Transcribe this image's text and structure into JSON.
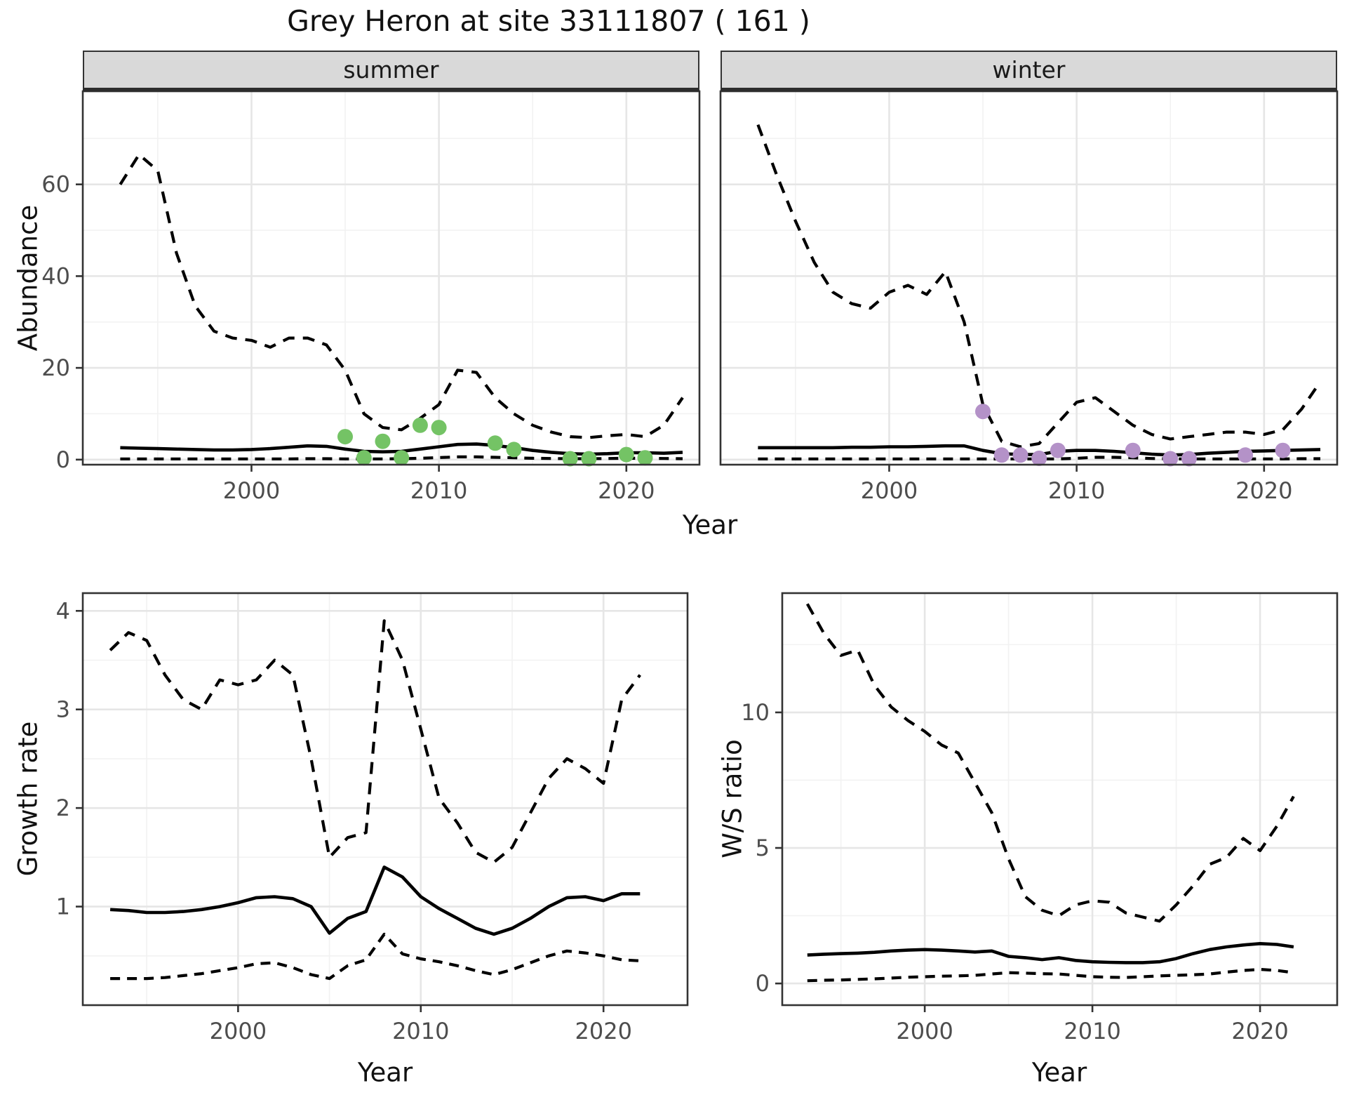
{
  "title": "Grey Heron at site 33111807 ( 161 )",
  "accent_colors": {
    "summer_points": "#74c365",
    "winter_points": "#b492c8",
    "lines": "#000000",
    "strip_bg": "#d9d9d9",
    "grid_major": "#e6e6e6",
    "grid_minor": "#f2f2f2",
    "tick_text": "#4d4d4d"
  },
  "chart_data": [
    {
      "id": "summer",
      "type": "line",
      "facet": "summer",
      "xlabel": "Year",
      "ylabel": "Abundance",
      "xticks": [
        2000,
        2010,
        2020
      ],
      "yticks": [
        0,
        20,
        40,
        60
      ],
      "x_minor": [
        1995,
        2005,
        2015
      ],
      "y_minor": [
        10,
        30,
        50,
        70
      ],
      "xlim": [
        1991,
        2023.9
      ],
      "ylim": [
        -1.1,
        80.3
      ],
      "show_yticks": true,
      "legend": "none",
      "grid": true,
      "years": [
        1993,
        1994,
        1995,
        1996,
        1997,
        1998,
        1999,
        2000,
        2001,
        2002,
        2003,
        2004,
        2005,
        2006,
        2007,
        2008,
        2009,
        2010,
        2011,
        2012,
        2013,
        2014,
        2015,
        2016,
        2017,
        2018,
        2019,
        2020,
        2021,
        2022,
        2023
      ],
      "series": [
        {
          "name": "upper_95ci",
          "style": "dashed",
          "values": [
            60,
            66.5,
            63,
            45,
            33.5,
            28,
            26.5,
            26,
            24.5,
            26.5,
            26.5,
            25,
            19.5,
            10,
            7,
            6.5,
            9,
            12,
            19.5,
            19,
            13.5,
            10,
            7.5,
            6,
            5,
            4.8,
            5.2,
            5.5,
            5,
            7.5,
            13.5
          ]
        },
        {
          "name": "median",
          "style": "solid",
          "values": [
            2.6,
            2.5,
            2.4,
            2.3,
            2.2,
            2.1,
            2.1,
            2.2,
            2.4,
            2.7,
            3.0,
            2.9,
            2.3,
            1.8,
            1.7,
            1.8,
            2.3,
            2.8,
            3.3,
            3.4,
            3.1,
            2.6,
            2.0,
            1.6,
            1.3,
            1.2,
            1.3,
            1.5,
            1.5,
            1.4,
            1.6
          ]
        },
        {
          "name": "lower_95ci",
          "style": "dashed",
          "values": [
            0.15,
            0.15,
            0.15,
            0.15,
            0.15,
            0.15,
            0.15,
            0.15,
            0.15,
            0.15,
            0.2,
            0.2,
            0.15,
            0.15,
            0.15,
            0.2,
            0.3,
            0.45,
            0.6,
            0.6,
            0.5,
            0.4,
            0.3,
            0.25,
            0.2,
            0.2,
            0.25,
            0.3,
            0.3,
            0.25,
            0.2
          ]
        }
      ],
      "observed_points": {
        "color": "#74c365",
        "data": [
          [
            2005,
            5
          ],
          [
            2006,
            0.4
          ],
          [
            2007,
            4
          ],
          [
            2008,
            0.4
          ],
          [
            2009,
            7.5
          ],
          [
            2010,
            7
          ],
          [
            2013,
            3.6
          ],
          [
            2014,
            2.2
          ],
          [
            2017,
            0.2
          ],
          [
            2018,
            0.2
          ],
          [
            2020,
            1.1
          ],
          [
            2021,
            0.4
          ]
        ]
      }
    },
    {
      "id": "winter",
      "type": "line",
      "facet": "winter",
      "xlabel": "Year",
      "ylabel": "",
      "xticks": [
        2000,
        2010,
        2020
      ],
      "yticks": [
        0,
        20,
        40,
        60
      ],
      "x_minor": [
        1995,
        2005,
        2015
      ],
      "y_minor": [
        10,
        30,
        50,
        70
      ],
      "xlim": [
        1991,
        2023.9
      ],
      "ylim": [
        -1.1,
        80.3
      ],
      "show_yticks": false,
      "legend": "none",
      "grid": true,
      "years": [
        1993,
        1994,
        1995,
        1996,
        1997,
        1998,
        1999,
        2000,
        2001,
        2002,
        2003,
        2004,
        2005,
        2006,
        2007,
        2008,
        2009,
        2010,
        2011,
        2012,
        2013,
        2014,
        2015,
        2016,
        2017,
        2018,
        2019,
        2020,
        2021,
        2022,
        2023
      ],
      "series": [
        {
          "name": "upper_95ci",
          "style": "dashed",
          "values": [
            73,
            62,
            52,
            43,
            36.5,
            34,
            33,
            36.5,
            38,
            36,
            41,
            30,
            12,
            4,
            2.8,
            3.5,
            8,
            12.5,
            13.5,
            10.5,
            7.5,
            5.5,
            4.5,
            5,
            5.5,
            6,
            6,
            5.5,
            6.5,
            11,
            17
          ]
        },
        {
          "name": "median",
          "style": "solid",
          "values": [
            2.6,
            2.6,
            2.6,
            2.6,
            2.6,
            2.7,
            2.7,
            2.8,
            2.8,
            2.9,
            3.0,
            3.0,
            2.0,
            1.3,
            1.1,
            1.1,
            1.8,
            2.0,
            2.0,
            1.8,
            1.5,
            1.2,
            1.0,
            1.1,
            1.4,
            1.6,
            1.8,
            1.9,
            2.0,
            2.1,
            2.2
          ]
        },
        {
          "name": "lower_95ci",
          "style": "dashed",
          "values": [
            0.15,
            0.15,
            0.15,
            0.15,
            0.15,
            0.15,
            0.15,
            0.15,
            0.15,
            0.15,
            0.15,
            0.15,
            0.15,
            0.15,
            0.15,
            0.15,
            0.15,
            0.3,
            0.5,
            0.5,
            0.4,
            0.25,
            0.15,
            0.15,
            0.15,
            0.15,
            0.15,
            0.15,
            0.15,
            0.2,
            0.2
          ]
        }
      ],
      "observed_points": {
        "color": "#b492c8",
        "data": [
          [
            2005,
            10.5
          ],
          [
            2006,
            1
          ],
          [
            2007,
            1
          ],
          [
            2008,
            0.3
          ],
          [
            2009,
            2
          ],
          [
            2013,
            2
          ],
          [
            2015,
            0.2
          ],
          [
            2016,
            0.2
          ],
          [
            2019,
            1
          ],
          [
            2021,
            2
          ]
        ]
      }
    },
    {
      "id": "growth",
      "type": "line",
      "facet": "",
      "xlabel": "Year",
      "ylabel": "Growth rate",
      "xticks": [
        2000,
        2010,
        2020
      ],
      "yticks": [
        1,
        2,
        3,
        4
      ],
      "x_minor": [
        1995,
        2005,
        2015
      ],
      "y_minor": [
        0.5,
        1.5,
        2.5,
        3.5
      ],
      "xlim": [
        1991.5,
        2024.6
      ],
      "ylim": [
        0,
        4.18
      ],
      "show_yticks": true,
      "legend": "none",
      "grid": true,
      "years": [
        1993,
        1994,
        1995,
        1996,
        1997,
        1998,
        1999,
        2000,
        2001,
        2002,
        2003,
        2004,
        2005,
        2006,
        2007,
        2008,
        2009,
        2010,
        2011,
        2012,
        2013,
        2014,
        2015,
        2016,
        2017,
        2018,
        2019,
        2020,
        2021,
        2022
      ],
      "series": [
        {
          "name": "upper_95ci",
          "style": "dashed",
          "values": [
            3.6,
            3.78,
            3.7,
            3.35,
            3.1,
            3.0,
            3.3,
            3.25,
            3.3,
            3.5,
            3.35,
            2.5,
            1.5,
            1.7,
            1.75,
            3.9,
            3.5,
            2.8,
            2.1,
            1.85,
            1.55,
            1.45,
            1.6,
            1.95,
            2.3,
            2.5,
            2.4,
            2.25,
            3.1,
            3.35
          ]
        },
        {
          "name": "median",
          "style": "solid",
          "values": [
            0.97,
            0.96,
            0.94,
            0.94,
            0.95,
            0.97,
            1.0,
            1.04,
            1.09,
            1.1,
            1.08,
            1.0,
            0.73,
            0.88,
            0.95,
            1.4,
            1.3,
            1.1,
            0.98,
            0.88,
            0.78,
            0.72,
            0.78,
            0.88,
            1.0,
            1.09,
            1.1,
            1.06,
            1.13,
            1.13
          ]
        },
        {
          "name": "lower_95ci",
          "style": "dashed",
          "values": [
            0.27,
            0.27,
            0.27,
            0.28,
            0.3,
            0.32,
            0.35,
            0.38,
            0.42,
            0.43,
            0.38,
            0.31,
            0.27,
            0.4,
            0.46,
            0.72,
            0.52,
            0.47,
            0.44,
            0.4,
            0.35,
            0.31,
            0.36,
            0.43,
            0.5,
            0.55,
            0.53,
            0.5,
            0.46,
            0.45
          ]
        }
      ],
      "observed_points": {
        "color": "",
        "data": []
      }
    },
    {
      "id": "ws",
      "type": "line",
      "facet": "",
      "xlabel": "Year",
      "ylabel": "W/S ratio",
      "xticks": [
        2000,
        2010,
        2020
      ],
      "yticks": [
        0,
        5,
        10
      ],
      "x_minor": [
        1995,
        2005,
        2015
      ],
      "y_minor": [
        2.5,
        7.5,
        12.5
      ],
      "xlim": [
        1991.5,
        2024.6
      ],
      "ylim": [
        -0.8,
        14.4
      ],
      "show_yticks": true,
      "legend": "none",
      "grid": true,
      "years": [
        1993,
        1994,
        1995,
        1996,
        1997,
        1998,
        1999,
        2000,
        2001,
        2002,
        2003,
        2004,
        2005,
        2006,
        2007,
        2008,
        2009,
        2010,
        2011,
        2012,
        2013,
        2014,
        2015,
        2016,
        2017,
        2018,
        2019,
        2020,
        2021,
        2022
      ],
      "series": [
        {
          "name": "upper_95ci",
          "style": "dashed",
          "values": [
            14,
            12.9,
            12.1,
            12.3,
            11,
            10.2,
            9.7,
            9.3,
            8.8,
            8.5,
            7.4,
            6.3,
            4.6,
            3.2,
            2.7,
            2.5,
            2.9,
            3.05,
            3.0,
            2.6,
            2.45,
            2.3,
            2.9,
            3.6,
            4.4,
            4.65,
            5.35,
            4.9,
            5.8,
            6.9
          ]
        },
        {
          "name": "median",
          "style": "solid",
          "values": [
            1.05,
            1.08,
            1.1,
            1.12,
            1.15,
            1.2,
            1.23,
            1.25,
            1.23,
            1.2,
            1.16,
            1.2,
            1.0,
            0.95,
            0.88,
            0.95,
            0.85,
            0.8,
            0.78,
            0.77,
            0.77,
            0.8,
            0.92,
            1.1,
            1.25,
            1.35,
            1.42,
            1.47,
            1.44,
            1.35
          ]
        },
        {
          "name": "lower_95ci",
          "style": "dashed",
          "values": [
            0.1,
            0.12,
            0.13,
            0.15,
            0.17,
            0.2,
            0.23,
            0.25,
            0.27,
            0.28,
            0.3,
            0.35,
            0.4,
            0.38,
            0.36,
            0.35,
            0.3,
            0.25,
            0.23,
            0.22,
            0.25,
            0.28,
            0.3,
            0.32,
            0.35,
            0.42,
            0.48,
            0.52,
            0.48,
            0.4
          ]
        }
      ],
      "observed_points": {
        "color": "",
        "data": []
      }
    }
  ]
}
